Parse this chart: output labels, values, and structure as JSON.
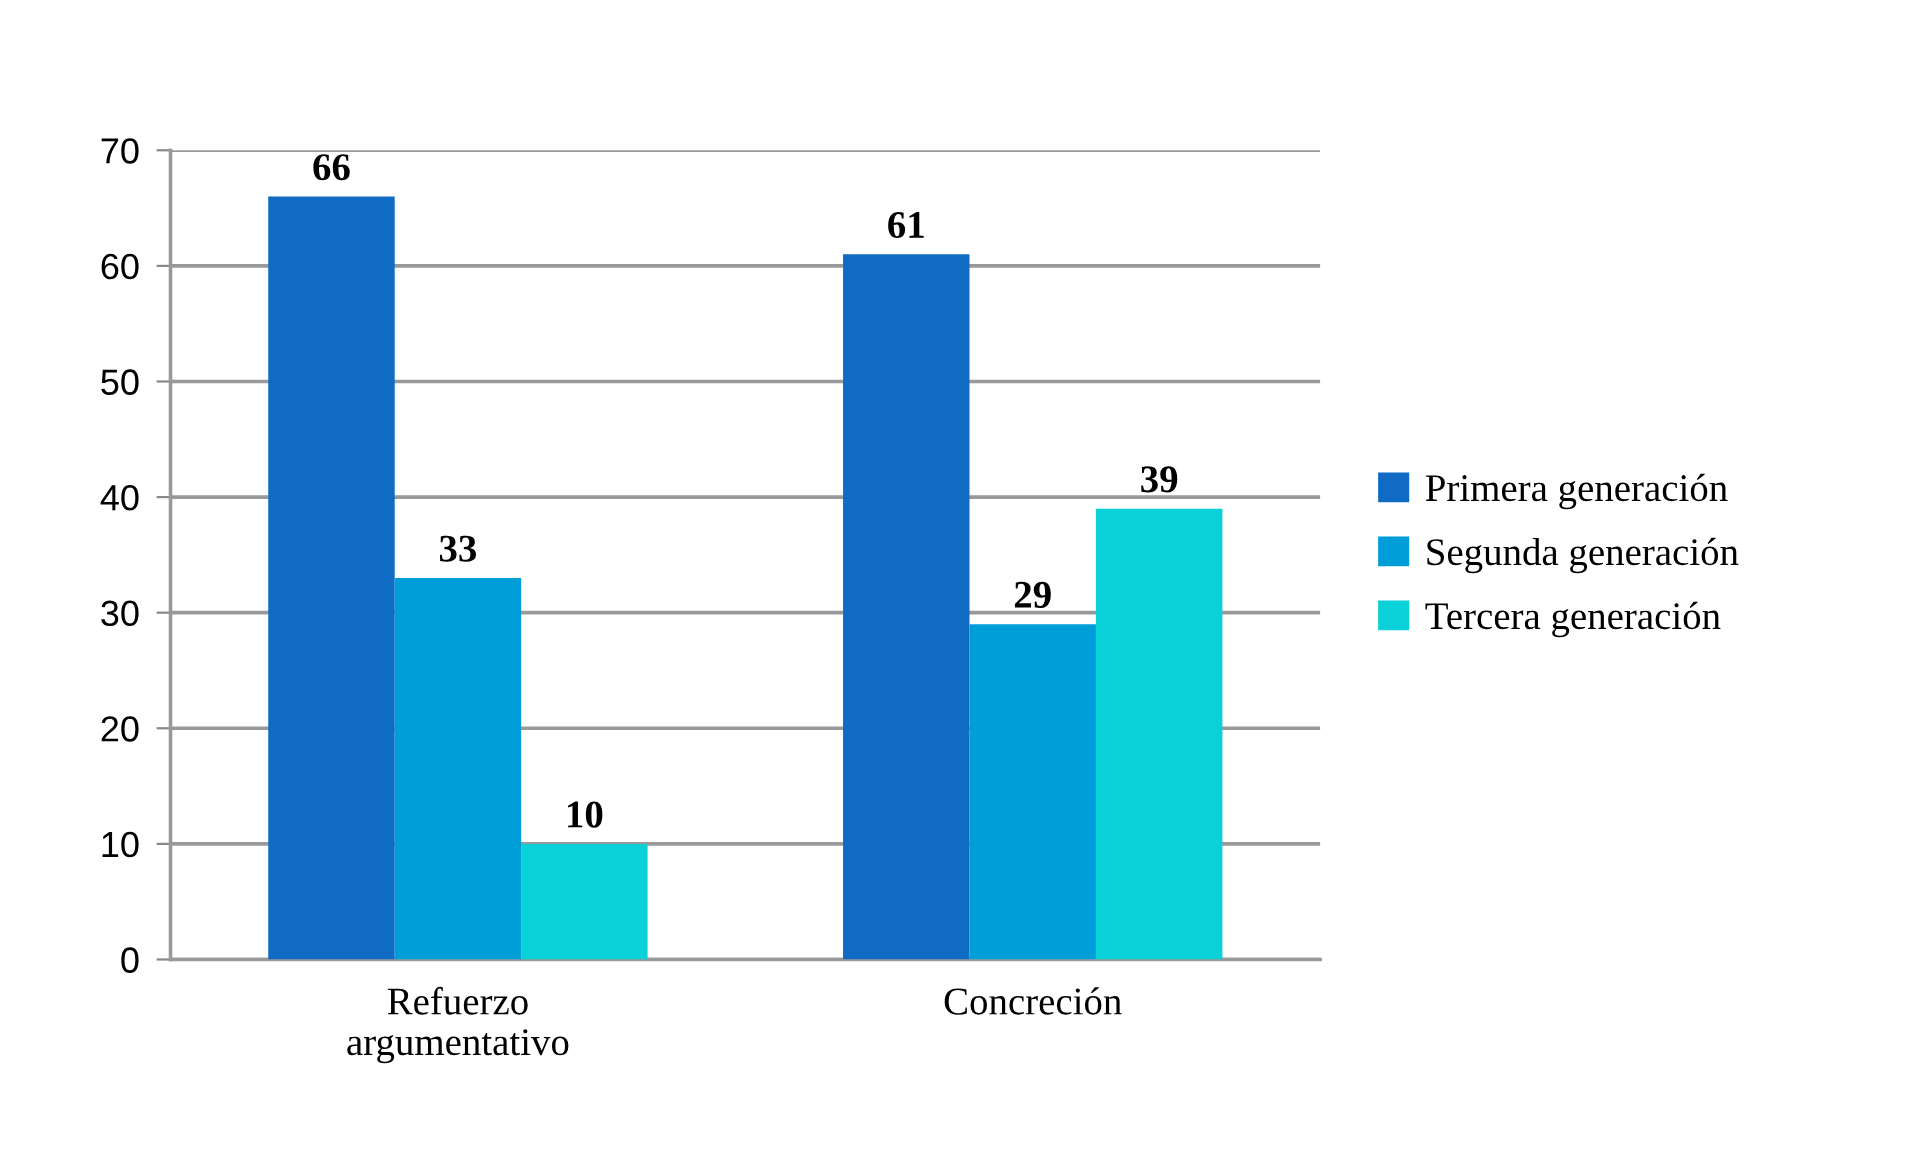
{
  "chart_data": {
    "type": "bar",
    "categories": [
      "Refuerzo\nargumentativo",
      "Concreción"
    ],
    "series": [
      {
        "name": "Primera generación",
        "color": "#106bc4",
        "values": [
          66,
          61
        ]
      },
      {
        "name": "Segunda generación",
        "color": "#009ed8",
        "values": [
          33,
          29
        ]
      },
      {
        "name": "Tercera generación",
        "color": "#0ad0d8",
        "values": [
          10,
          39
        ]
      }
    ],
    "ylim": [
      0,
      70
    ],
    "yticks": [
      0,
      10,
      20,
      30,
      40,
      50,
      60,
      70
    ],
    "grid": "y",
    "legend": "right",
    "data_labels": true
  }
}
